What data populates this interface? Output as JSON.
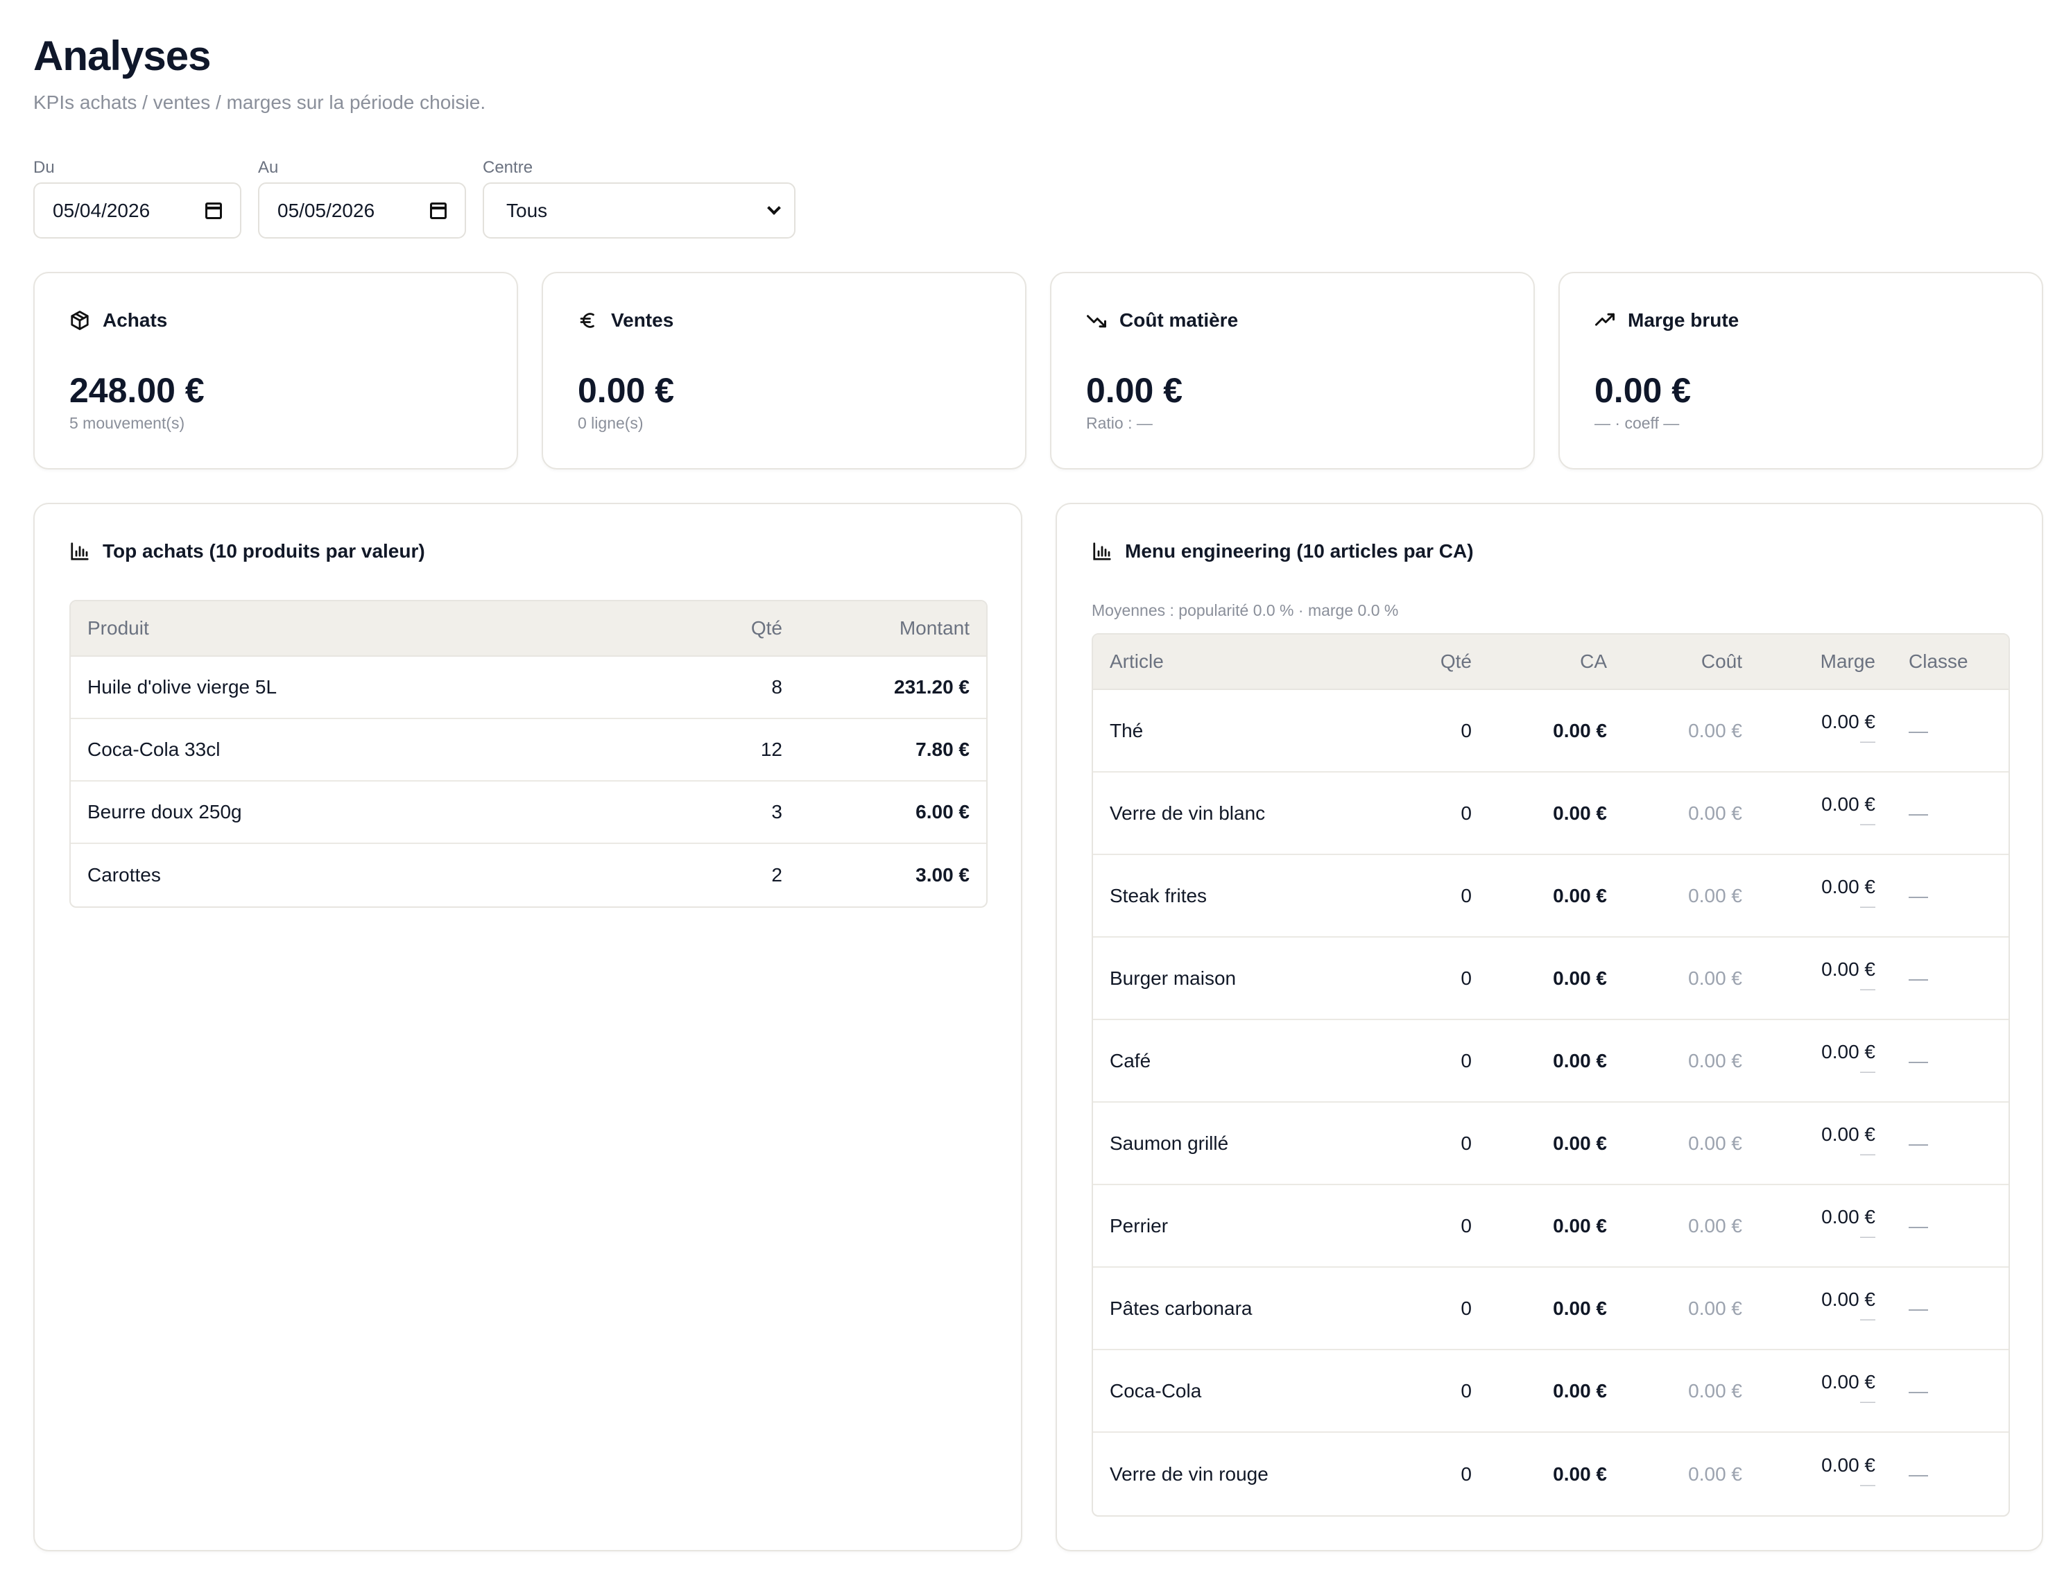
{
  "page": {
    "title": "Analyses",
    "subtitle": "KPIs achats / ventes / marges sur la période choisie."
  },
  "filters": {
    "from_label": "Du",
    "from_value": "05/04/2026",
    "to_label": "Au",
    "to_value": "05/05/2026",
    "centre_label": "Centre",
    "centre_value": "Tous"
  },
  "kpis": [
    {
      "label": "Achats",
      "icon": "package-icon",
      "value": "248.00 €",
      "sub": "5 mouvement(s)"
    },
    {
      "label": "Ventes",
      "icon": "euro-icon",
      "value": "0.00 €",
      "sub": "0 ligne(s)"
    },
    {
      "label": "Coût matière",
      "icon": "trending-down-icon",
      "value": "0.00 €",
      "sub": "Ratio : —"
    },
    {
      "label": "Marge brute",
      "icon": "trending-up-icon",
      "value": "0.00 €",
      "sub": "— · coeff —"
    }
  ],
  "top_achats": {
    "title": "Top achats (10 produits par valeur)",
    "columns": [
      "Produit",
      "Qté",
      "Montant"
    ],
    "rows": [
      {
        "produit": "Huile d'olive vierge 5L",
        "qte": "8",
        "montant": "231.20 €"
      },
      {
        "produit": "Coca-Cola 33cl",
        "qte": "12",
        "montant": "7.80 €"
      },
      {
        "produit": "Beurre doux 250g",
        "qte": "3",
        "montant": "6.00 €"
      },
      {
        "produit": "Carottes",
        "qte": "2",
        "montant": "3.00 €"
      }
    ]
  },
  "menu_engineering": {
    "title": "Menu engineering (10 articles par CA)",
    "note": "Moyennes : popularité 0.0 % · marge 0.0 %",
    "columns": [
      "Article",
      "Qté",
      "CA",
      "Coût",
      "Marge",
      "Classe"
    ],
    "rows": [
      {
        "article": "Thé",
        "qte": "0",
        "ca": "0.00 €",
        "cout": "0.00 €",
        "marge": "0.00 €",
        "marge_sub": "—",
        "classe": "—"
      },
      {
        "article": "Verre de vin blanc",
        "qte": "0",
        "ca": "0.00 €",
        "cout": "0.00 €",
        "marge": "0.00 €",
        "marge_sub": "—",
        "classe": "—"
      },
      {
        "article": "Steak frites",
        "qte": "0",
        "ca": "0.00 €",
        "cout": "0.00 €",
        "marge": "0.00 €",
        "marge_sub": "—",
        "classe": "—"
      },
      {
        "article": "Burger maison",
        "qte": "0",
        "ca": "0.00 €",
        "cout": "0.00 €",
        "marge": "0.00 €",
        "marge_sub": "—",
        "classe": "—"
      },
      {
        "article": "Café",
        "qte": "0",
        "ca": "0.00 €",
        "cout": "0.00 €",
        "marge": "0.00 €",
        "marge_sub": "—",
        "classe": "—"
      },
      {
        "article": "Saumon grillé",
        "qte": "0",
        "ca": "0.00 €",
        "cout": "0.00 €",
        "marge": "0.00 €",
        "marge_sub": "—",
        "classe": "—"
      },
      {
        "article": "Perrier",
        "qte": "0",
        "ca": "0.00 €",
        "cout": "0.00 €",
        "marge": "0.00 €",
        "marge_sub": "—",
        "classe": "—"
      },
      {
        "article": "Pâtes carbonara",
        "qte": "0",
        "ca": "0.00 €",
        "cout": "0.00 €",
        "marge": "0.00 €",
        "marge_sub": "—",
        "classe": "—"
      },
      {
        "article": "Coca-Cola",
        "qte": "0",
        "ca": "0.00 €",
        "cout": "0.00 €",
        "marge": "0.00 €",
        "marge_sub": "—",
        "classe": "—"
      },
      {
        "article": "Verre de vin rouge",
        "qte": "0",
        "ca": "0.00 €",
        "cout": "0.00 €",
        "marge": "0.00 €",
        "marge_sub": "—",
        "classe": "—"
      }
    ]
  }
}
